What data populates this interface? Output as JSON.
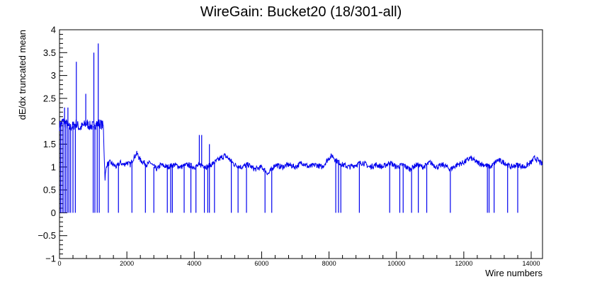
{
  "chart_data": {
    "type": "line",
    "title": "WireGain: Bucket20 (18/301-all)",
    "xlabel": "Wire numbers",
    "ylabel": "dE/dx truncated mean",
    "xlim": [
      0,
      14336
    ],
    "ylim": [
      -1,
      4
    ],
    "xticks": [
      0,
      2000,
      4000,
      6000,
      8000,
      10000,
      12000,
      14000
    ],
    "xtick_labels": [
      "0",
      "2000",
      "4000",
      "6000",
      "8000",
      "10000",
      "12000",
      "14000"
    ],
    "yticks": [
      -1,
      -0.5,
      0,
      0.5,
      1,
      1.5,
      2,
      2.5,
      3,
      3.5,
      4
    ],
    "ytick_labels": [
      "−1",
      "−0.5",
      "0",
      "0.5",
      "1",
      "1.5",
      "2",
      "2.5",
      "3",
      "3.5",
      "4"
    ],
    "grid": false,
    "legend": "none",
    "color": "#0000ee",
    "series": [
      {
        "x": [
          0,
          100,
          200,
          300,
          400,
          500,
          600,
          700,
          800,
          900,
          1000,
          1100,
          1200,
          1300,
          1350,
          1400,
          1500,
          1600,
          1700,
          1800,
          1900,
          2000,
          2100,
          2200,
          2300,
          2400,
          2500,
          2600,
          2700,
          2800,
          2900,
          3000,
          3200,
          3400,
          3600,
          3800,
          4000,
          4200,
          4400,
          4600,
          4800,
          4900,
          5000,
          5200,
          5400,
          5600,
          5800,
          6000,
          6200,
          6400,
          6600,
          6800,
          7000,
          7200,
          7400,
          7600,
          7800,
          8000,
          8100,
          8200,
          8400,
          8600,
          8800,
          9000,
          9200,
          9400,
          9600,
          9800,
          10000,
          10200,
          10400,
          10600,
          10800,
          11000,
          11200,
          11400,
          11600,
          11800,
          12000,
          12100,
          12200,
          12400,
          12600,
          12800,
          13000,
          13200,
          13400,
          13600,
          13800,
          14000,
          14100,
          14200,
          14336
        ],
        "y": [
          1.9,
          2.0,
          1.95,
          1.85,
          1.9,
          1.95,
          1.85,
          1.9,
          1.95,
          1.9,
          1.9,
          1.95,
          1.95,
          1.9,
          0.75,
          1.05,
          1.1,
          1.05,
          1.0,
          1.1,
          1.05,
          1.1,
          1.05,
          1.2,
          1.3,
          1.15,
          1.1,
          1.05,
          1.1,
          1.0,
          0.95,
          1.05,
          1.0,
          1.05,
          1.0,
          1.05,
          1.0,
          1.05,
          1.0,
          1.1,
          1.2,
          1.25,
          1.2,
          1.05,
          1.0,
          1.05,
          0.95,
          1.0,
          0.85,
          1.05,
          1.0,
          1.05,
          1.0,
          1.1,
          1.0,
          1.05,
          1.0,
          1.2,
          1.25,
          1.15,
          1.05,
          1.0,
          1.05,
          1.1,
          1.0,
          1.05,
          1.0,
          1.1,
          1.0,
          1.05,
          0.95,
          1.05,
          1.0,
          1.1,
          1.0,
          1.05,
          0.95,
          1.05,
          1.1,
          1.15,
          1.2,
          1.1,
          1.05,
          1.0,
          1.15,
          1.1,
          1.0,
          1.05,
          1.0,
          1.1,
          1.2,
          1.15,
          1.05
        ]
      }
    ],
    "drops_to_zero_at": [
      30,
      80,
      130,
      180,
      230,
      280,
      330,
      400,
      470,
      1000,
      1050,
      1120,
      1180,
      1450,
      1750,
      2150,
      2550,
      2800,
      3200,
      3300,
      3350,
      3700,
      3900,
      4050,
      4300,
      4400,
      4450,
      4600,
      5100,
      5300,
      5550,
      6100,
      6300,
      8200,
      8280,
      8350,
      8900,
      9800,
      10100,
      10200,
      10450,
      10650,
      10900,
      11600,
      12700,
      12750,
      12900,
      13300,
      13600
    ],
    "spikes": [
      {
        "x": 150,
        "y": 2.3
      },
      {
        "x": 250,
        "y": 2.3
      },
      {
        "x": 500,
        "y": 3.3
      },
      {
        "x": 780,
        "y": 2.6
      },
      {
        "x": 1020,
        "y": 3.5
      },
      {
        "x": 1150,
        "y": 3.7
      },
      {
        "x": 4150,
        "y": 1.7
      },
      {
        "x": 4220,
        "y": 1.7
      },
      {
        "x": 4450,
        "y": 1.5
      }
    ]
  }
}
